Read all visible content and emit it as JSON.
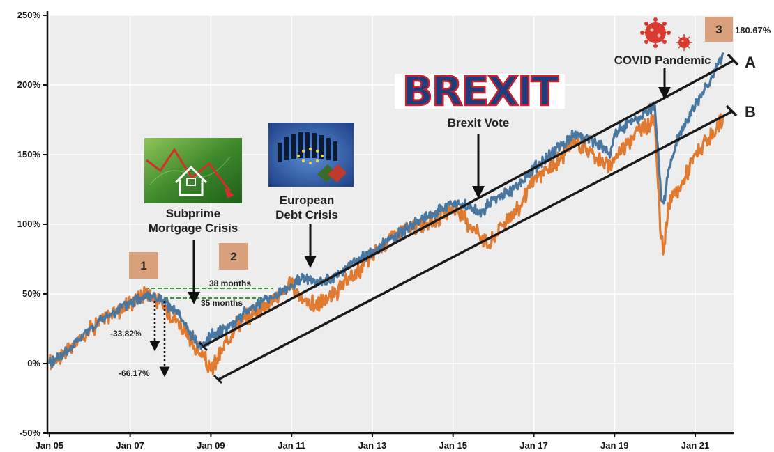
{
  "chart_data": {
    "type": "line",
    "title": "",
    "xlabel": "",
    "ylabel": "",
    "ylim": [
      -50,
      250
    ],
    "yticks": [
      "-50%",
      "0%",
      "50%",
      "100%",
      "150%",
      "200%",
      "250%"
    ],
    "xticks": [
      "Jan 05",
      "Jan 07",
      "Jan 09",
      "Jan 11",
      "Jan 13",
      "Jan 15",
      "Jan 17",
      "Jan 19",
      "Jan 21"
    ],
    "grid": true,
    "colors": {
      "series_a": "#4a77a0",
      "series_b": "#e07a30",
      "plot_bg": "#ededed",
      "grid": "#ffffff",
      "badge": "#d9a07c"
    },
    "series": [
      {
        "key": "a",
        "x": [
          2005.0,
          2005.5,
          2006.0,
          2006.5,
          2007.0,
          2007.4,
          2007.8,
          2008.2,
          2008.5,
          2008.8,
          2009.0,
          2009.5,
          2010.0,
          2010.5,
          2011.0,
          2011.3,
          2011.6,
          2012.0,
          2012.5,
          2013.0,
          2013.5,
          2014.0,
          2014.5,
          2015.0,
          2015.4,
          2015.7,
          2016.0,
          2016.5,
          2017.0,
          2017.5,
          2018.0,
          2018.5,
          2018.9,
          2019.0,
          2019.5,
          2020.0,
          2020.15,
          2020.22,
          2020.35,
          2020.6,
          2021.0,
          2021.5,
          2021.7
        ],
        "y": [
          0,
          10,
          25,
          35,
          43,
          50,
          45,
          35,
          20,
          12,
          20,
          28,
          40,
          48,
          55,
          63,
          58,
          60,
          72,
          80,
          90,
          100,
          108,
          115,
          112,
          108,
          118,
          125,
          140,
          152,
          165,
          160,
          150,
          165,
          175,
          185,
          120,
          115,
          140,
          165,
          185,
          210,
          222
        ]
      },
      {
        "key": "b",
        "x": [
          2005.0,
          2005.5,
          2006.0,
          2006.5,
          2007.0,
          2007.4,
          2007.8,
          2008.2,
          2008.5,
          2008.8,
          2009.0,
          2009.3,
          2009.6,
          2010.0,
          2010.5,
          2011.0,
          2011.3,
          2011.6,
          2012.0,
          2012.5,
          2013.0,
          2013.5,
          2014.0,
          2014.5,
          2015.0,
          2015.5,
          2015.9,
          2016.2,
          2016.6,
          2017.0,
          2017.5,
          2018.0,
          2018.5,
          2018.9,
          2019.0,
          2019.5,
          2020.0,
          2020.15,
          2020.22,
          2020.35,
          2020.6,
          2021.0,
          2021.5,
          2021.7
        ],
        "y": [
          0,
          10,
          25,
          35,
          43,
          52,
          42,
          30,
          15,
          5,
          -5,
          10,
          28,
          35,
          45,
          57,
          45,
          42,
          48,
          62,
          78,
          92,
          98,
          102,
          112,
          98,
          85,
          100,
          110,
          132,
          142,
          160,
          150,
          140,
          148,
          165,
          175,
          90,
          82,
          115,
          125,
          150,
          165,
          178
        ]
      }
    ],
    "annotations": {
      "subprime": [
        "Subprime",
        "Mortgage Crisis"
      ],
      "european": [
        "European",
        "Debt Crisis"
      ],
      "brexit_vote": "Brexit Vote",
      "brexit_logo": "BREXIT",
      "covid": "COVID Pandemic",
      "months_38": "38 months",
      "months_35": "35 months",
      "drop_a": "-33.82%",
      "drop_b": "-66.17%",
      "badge_1": "1",
      "badge_2": "2",
      "badge_3": "3",
      "final_value": "180.67%",
      "channel_a": "A",
      "channel_b": "B"
    }
  }
}
